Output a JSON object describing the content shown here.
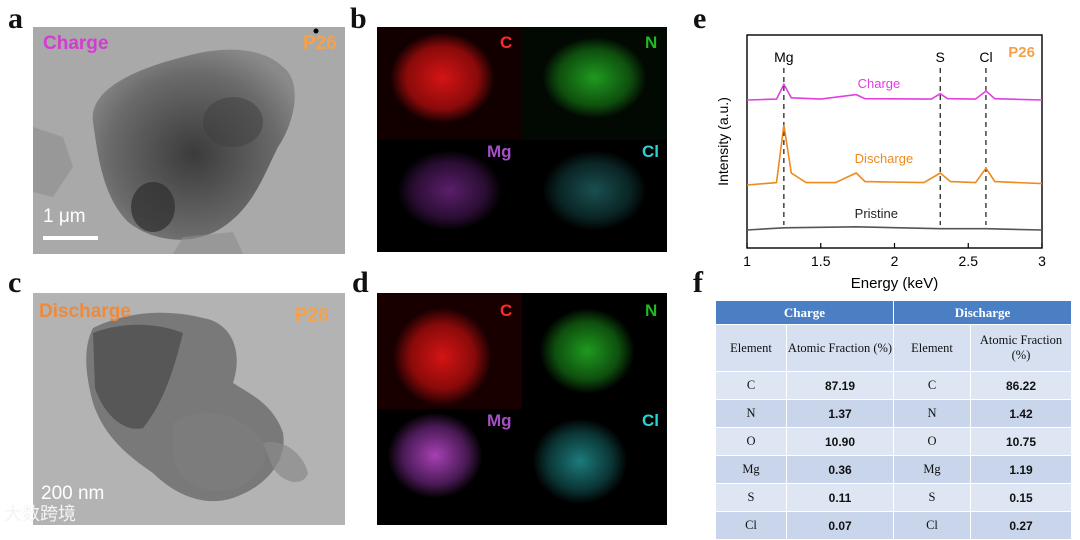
{
  "panels": {
    "a": {
      "label": "a",
      "condition": "Charge",
      "sample": "P26",
      "scale": "1 μm"
    },
    "b": {
      "label": "b",
      "elements": [
        "C",
        "N",
        "Mg",
        "Cl"
      ]
    },
    "c": {
      "label": "c",
      "condition": "Discharge",
      "sample": "P26",
      "scale": "200 nm"
    },
    "d": {
      "label": "d",
      "elements": [
        "C",
        "N",
        "Mg",
        "Cl"
      ]
    },
    "e": {
      "label": "e"
    },
    "f": {
      "label": "f"
    }
  },
  "colors": {
    "charge": "#e23ee2",
    "discharge": "#ee8a1f",
    "pristine": "#555555",
    "C": "#ff2a2a",
    "N": "#1fbb1f",
    "Mg": "#a64fc7",
    "Cl": "#28d3d3",
    "sample": "#f5a14a",
    "tableHeader": "#4a7fc4"
  },
  "chart_data": {
    "type": "line",
    "xlabel": "Energy (keV)",
    "ylabel": "Intensity (a.u.)",
    "xlim": [
      1.0,
      3.0
    ],
    "xticks": [
      1.0,
      1.5,
      2.0,
      2.5,
      3.0
    ],
    "title": "P26",
    "peak_markers": [
      {
        "label": "Mg",
        "x": 1.25
      },
      {
        "label": "S",
        "x": 2.31
      },
      {
        "label": "Cl",
        "x": 2.62
      }
    ],
    "series": [
      {
        "name": "Charge",
        "offset": 2.0,
        "points": [
          [
            1.0,
            0.0
          ],
          [
            1.2,
            0.02
          ],
          [
            1.25,
            0.35
          ],
          [
            1.3,
            0.05
          ],
          [
            1.5,
            0.02
          ],
          [
            1.74,
            0.12
          ],
          [
            1.8,
            0.03
          ],
          [
            2.25,
            0.02
          ],
          [
            2.31,
            0.14
          ],
          [
            2.36,
            0.03
          ],
          [
            2.55,
            0.02
          ],
          [
            2.62,
            0.2
          ],
          [
            2.68,
            0.03
          ],
          [
            3.0,
            0.0
          ]
        ]
      },
      {
        "name": "Discharge",
        "offset": 1.0,
        "points": [
          [
            1.0,
            0.0
          ],
          [
            1.2,
            0.05
          ],
          [
            1.25,
            1.25
          ],
          [
            1.3,
            0.25
          ],
          [
            1.4,
            0.05
          ],
          [
            1.6,
            0.05
          ],
          [
            1.74,
            0.25
          ],
          [
            1.8,
            0.07
          ],
          [
            2.2,
            0.05
          ],
          [
            2.31,
            0.25
          ],
          [
            2.38,
            0.07
          ],
          [
            2.55,
            0.05
          ],
          [
            2.62,
            0.35
          ],
          [
            2.68,
            0.07
          ],
          [
            3.0,
            0.03
          ]
        ]
      },
      {
        "name": "Pristine",
        "offset": 0.0,
        "points": [
          [
            1.0,
            0.0
          ],
          [
            1.25,
            0.05
          ],
          [
            1.74,
            0.07
          ],
          [
            2.31,
            0.03
          ],
          [
            2.62,
            0.03
          ],
          [
            3.0,
            0.0
          ]
        ]
      }
    ]
  },
  "table": {
    "groups": [
      "Charge",
      "Discharge"
    ],
    "subheaders": [
      "Element",
      "Atomic Fraction (%)",
      "Element",
      "Atomic Fraction (%)"
    ],
    "rows": [
      [
        "C",
        "87.19",
        "C",
        "86.22"
      ],
      [
        "N",
        "1.37",
        "N",
        "1.42"
      ],
      [
        "O",
        "10.90",
        "O",
        "10.75"
      ],
      [
        "Mg",
        "0.36",
        "Mg",
        "1.19"
      ],
      [
        "S",
        "0.11",
        "S",
        "0.15"
      ],
      [
        "Cl",
        "0.07",
        "Cl",
        "0.27"
      ]
    ]
  },
  "watermark": "大数跨境"
}
